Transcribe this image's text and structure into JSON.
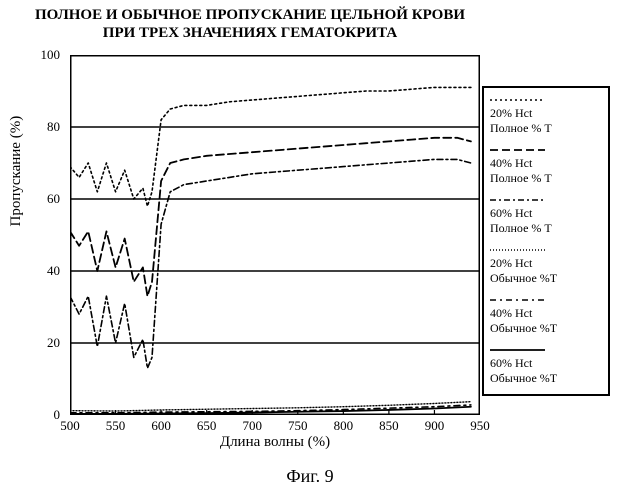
{
  "title_line1": "ПОЛНОЕ И ОБЫЧНОЕ ПРОПУСКАНИЕ ЦЕЛЬНОЙ КРОВИ",
  "title_line2": "ПРИ ТРЕХ ЗНАЧЕНИЯХ ГЕМАТОКРИТА",
  "caption": "Фиг. 9",
  "axes": {
    "x_label": "Длина волны (%)",
    "y_label": "Пропускание (%)",
    "xlim": [
      500,
      950
    ],
    "ylim": [
      0,
      100
    ],
    "xticks": [
      500,
      550,
      600,
      650,
      700,
      750,
      800,
      850,
      900,
      950
    ],
    "yticks": [
      0,
      20,
      40,
      60,
      80,
      100
    ],
    "grid_y": [
      20,
      40,
      60,
      80,
      100
    ],
    "font_size_label": 15,
    "font_size_tick": 13,
    "grid_color": "#000000",
    "border_color": "#000000",
    "border_width": 2,
    "background": "#ffffff"
  },
  "legend": {
    "border_color": "#000000",
    "border_width": 2,
    "font_size": 12,
    "entries": [
      {
        "label_l1": "20% Hct",
        "label_l2": "Полное % T",
        "dash": "2 3",
        "width": 1.6
      },
      {
        "label_l1": "40% Hct",
        "label_l2": "Полное % T",
        "dash": "8 4",
        "width": 1.8
      },
      {
        "label_l1": "60% Hct",
        "label_l2": "Полное % T",
        "dash": "6 3 2 3",
        "width": 1.6
      },
      {
        "label_l1": "20% Hct",
        "label_l2": "Обычное %T",
        "dash": "1 2",
        "width": 1.4
      },
      {
        "label_l1": "40% Hct",
        "label_l2": "Обычное %T",
        "dash": "6 4 2 4",
        "width": 1.6
      },
      {
        "label_l1": "60% Hct",
        "label_l2": "Обычное %T",
        "dash": "",
        "width": 1.8
      }
    ]
  },
  "series": [
    {
      "name": "20% Hct Полное % T",
      "dash": "2 3",
      "width": 1.6,
      "x": [
        500,
        510,
        520,
        530,
        540,
        550,
        560,
        570,
        580,
        585,
        590,
        600,
        610,
        625,
        650,
        675,
        700,
        725,
        750,
        775,
        800,
        825,
        850,
        875,
        900,
        925,
        940
      ],
      "y": [
        69,
        66,
        70,
        62,
        70,
        62,
        68,
        60,
        63,
        58,
        62,
        82,
        85,
        86,
        86,
        87,
        87.5,
        88,
        88.5,
        89,
        89.5,
        90,
        90,
        90.5,
        91,
        91,
        91
      ]
    },
    {
      "name": "40% Hct Полное % T",
      "dash": "8 4",
      "width": 1.8,
      "x": [
        500,
        510,
        520,
        530,
        540,
        550,
        560,
        570,
        580,
        585,
        590,
        600,
        610,
        625,
        650,
        675,
        700,
        725,
        750,
        775,
        800,
        825,
        850,
        875,
        900,
        925,
        940
      ],
      "y": [
        51,
        47,
        51,
        40,
        51,
        41,
        49,
        37,
        41,
        33,
        37,
        65,
        70,
        71,
        72,
        72.5,
        73,
        73.5,
        74,
        74.5,
        75,
        75.5,
        76,
        76.5,
        77,
        77,
        76
      ]
    },
    {
      "name": "60% Hct Полное % T",
      "dash": "6 3 2 3",
      "width": 1.6,
      "x": [
        500,
        510,
        520,
        530,
        540,
        550,
        560,
        570,
        580,
        585,
        590,
        600,
        610,
        625,
        650,
        675,
        700,
        725,
        750,
        775,
        800,
        825,
        850,
        875,
        900,
        925,
        940
      ],
      "y": [
        33,
        28,
        33,
        19,
        33,
        20,
        31,
        16,
        21,
        13,
        16,
        53,
        62,
        64,
        65,
        66,
        67,
        67.5,
        68,
        68.5,
        69,
        69.5,
        70,
        70.5,
        71,
        71,
        70
      ]
    },
    {
      "name": "20% Hct Обычное %T",
      "dash": "1 2",
      "width": 1.4,
      "x": [
        500,
        550,
        600,
        650,
        700,
        750,
        800,
        850,
        900,
        940
      ],
      "y": [
        1.2,
        1.1,
        1.4,
        1.6,
        1.8,
        2.0,
        2.3,
        2.7,
        3.2,
        3.7
      ]
    },
    {
      "name": "40% Hct Обычное %T",
      "dash": "6 4 2 4",
      "width": 1.6,
      "x": [
        500,
        550,
        600,
        650,
        700,
        750,
        800,
        850,
        900,
        940
      ],
      "y": [
        0.6,
        0.6,
        0.8,
        0.9,
        1.0,
        1.2,
        1.5,
        1.9,
        2.3,
        2.8
      ]
    },
    {
      "name": "60% Hct Обычное %T",
      "dash": "",
      "width": 1.8,
      "x": [
        500,
        550,
        600,
        650,
        700,
        750,
        800,
        850,
        900,
        940
      ],
      "y": [
        0.3,
        0.3,
        0.4,
        0.5,
        0.7,
        0.9,
        1.1,
        1.4,
        1.8,
        2.3
      ]
    }
  ]
}
